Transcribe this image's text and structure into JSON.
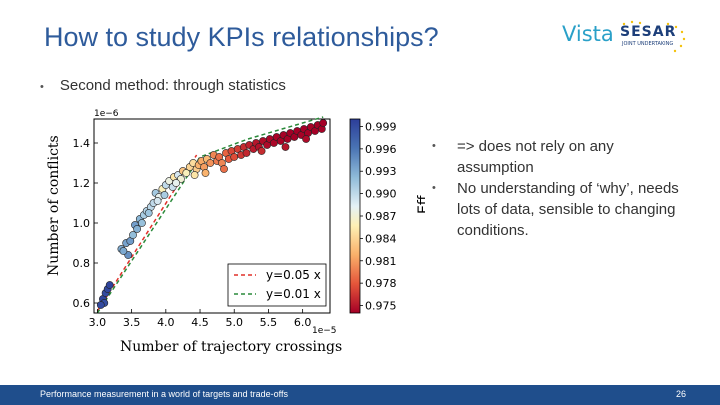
{
  "slide": {
    "title": "How to study KPIs relationships?",
    "bullet_main": "Second method: through statistics",
    "right_bullets": [
      "=> does not rely on any assumption",
      "No understanding of ‘why’, needs lots of data, sensible to changing conditions."
    ],
    "footer_text": "Performance measurement in a world of targets and trade-offs",
    "page_number": "26"
  },
  "logo": {
    "vista": "Vista",
    "sesar": "SESAR",
    "sesar_sub": "JOINT UNDERTAKING"
  },
  "colors": {
    "title": "#2e5b9b",
    "footer": "#1f4e8c",
    "line_red": "#e0302a",
    "line_green": "#2a8a3a"
  },
  "chart_data": {
    "type": "scatter",
    "xlabel": "Number of trajectory crossings",
    "ylabel": "Number of conflicts",
    "x_offset_label": "1e−5",
    "y_offset_label": "1e−6",
    "xlim": [
      2.95,
      6.4
    ],
    "ylim": [
      0.55,
      1.52
    ],
    "xticks": [
      "3.0",
      "3.5",
      "4.0",
      "4.5",
      "5.0",
      "5.5",
      "6.0"
    ],
    "yticks": [
      "0.6",
      "0.8",
      "1.0",
      "1.2",
      "1.4"
    ],
    "colorbar": {
      "label": "Eff",
      "range": [
        0.974,
        1.0
      ],
      "ticks": [
        "0.999",
        "0.996",
        "0.993",
        "0.990",
        "0.987",
        "0.984",
        "0.981",
        "0.978",
        "0.975"
      ]
    },
    "legend": {
      "position": "lower-right",
      "entries": [
        "y=0.05 x",
        "y=0.01 x"
      ]
    },
    "lines": [
      {
        "name": "y=0.05 x",
        "color": "#e0302a",
        "points": [
          [
            3.0,
            0.56
          ],
          [
            4.45,
            1.34
          ]
        ]
      },
      {
        "name": "y=0.01 x",
        "color": "#2a8a3a",
        "points": [
          [
            3.0,
            0.55
          ],
          [
            4.5,
            1.33
          ],
          [
            5.2,
            1.42
          ],
          [
            6.3,
            1.53
          ]
        ]
      }
    ],
    "points": [
      [
        3.08,
        0.62,
        0.9995
      ],
      [
        3.12,
        0.65,
        0.999
      ],
      [
        3.15,
        0.67,
        0.9993
      ],
      [
        3.1,
        0.6,
        0.9988
      ],
      [
        3.18,
        0.69,
        0.9996
      ],
      [
        3.05,
        0.59,
        0.9991
      ],
      [
        3.35,
        0.87,
        0.993
      ],
      [
        3.42,
        0.9,
        0.9935
      ],
      [
        3.48,
        0.91,
        0.994
      ],
      [
        3.52,
        0.94,
        0.992
      ],
      [
        3.45,
        0.84,
        0.9945
      ],
      [
        3.55,
        0.99,
        0.9938
      ],
      [
        3.62,
        1.02,
        0.9925
      ],
      [
        3.68,
        1.04,
        0.991
      ],
      [
        3.72,
        1.06,
        0.9905
      ],
      [
        3.78,
        1.08,
        0.9902
      ],
      [
        3.82,
        1.1,
        0.99
      ],
      [
        3.65,
        1.0,
        0.9918
      ],
      [
        3.85,
        1.15,
        0.9912
      ],
      [
        3.9,
        1.13,
        0.988
      ],
      [
        3.95,
        1.17,
        0.986
      ],
      [
        4.0,
        1.19,
        0.99
      ],
      [
        4.05,
        1.21,
        0.9875
      ],
      [
        4.1,
        1.18,
        0.9895
      ],
      [
        4.12,
        1.23,
        0.985
      ],
      [
        4.18,
        1.24,
        0.989
      ],
      [
        4.22,
        1.22,
        0.987
      ],
      [
        4.25,
        1.26,
        0.983
      ],
      [
        4.3,
        1.25,
        0.986
      ],
      [
        3.98,
        1.14,
        0.991
      ],
      [
        4.35,
        1.28,
        0.984
      ],
      [
        4.4,
        1.3,
        0.9845
      ],
      [
        4.45,
        1.27,
        0.9835
      ],
      [
        4.48,
        1.29,
        0.982
      ],
      [
        4.52,
        1.31,
        0.9815
      ],
      [
        4.56,
        1.28,
        0.981
      ],
      [
        4.6,
        1.32,
        0.9825
      ],
      [
        4.65,
        1.3,
        0.9805
      ],
      [
        4.7,
        1.34,
        0.98
      ],
      [
        4.75,
        1.31,
        0.9795
      ],
      [
        4.78,
        1.33,
        0.979
      ],
      [
        4.82,
        1.3,
        0.98
      ],
      [
        4.88,
        1.35,
        0.9785
      ],
      [
        4.92,
        1.32,
        0.978
      ],
      [
        4.96,
        1.36,
        0.9772
      ],
      [
        5.0,
        1.33,
        0.9775
      ],
      [
        5.05,
        1.37,
        0.9768
      ],
      [
        5.1,
        1.34,
        0.9765
      ],
      [
        5.14,
        1.38,
        0.976
      ],
      [
        5.18,
        1.35,
        0.9758
      ],
      [
        5.22,
        1.39,
        0.9755
      ],
      [
        5.28,
        1.37,
        0.9752
      ],
      [
        5.32,
        1.4,
        0.975
      ],
      [
        5.36,
        1.38,
        0.9748
      ],
      [
        5.42,
        1.41,
        0.9746
      ],
      [
        5.48,
        1.39,
        0.9745
      ],
      [
        5.52,
        1.42,
        0.9744
      ],
      [
        5.58,
        1.4,
        0.9743
      ],
      [
        5.62,
        1.43,
        0.9742
      ],
      [
        5.68,
        1.41,
        0.9742
      ],
      [
        5.72,
        1.44,
        0.9741
      ],
      [
        5.78,
        1.42,
        0.9741
      ],
      [
        5.82,
        1.45,
        0.974
      ],
      [
        5.88,
        1.43,
        0.974
      ],
      [
        5.92,
        1.46,
        0.974
      ],
      [
        5.98,
        1.44,
        0.9741
      ],
      [
        6.02,
        1.47,
        0.974
      ],
      [
        6.08,
        1.45,
        0.974
      ],
      [
        6.12,
        1.48,
        0.9741
      ],
      [
        6.18,
        1.46,
        0.974
      ],
      [
        6.22,
        1.49,
        0.974
      ],
      [
        6.28,
        1.47,
        0.9741
      ],
      [
        6.3,
        1.5,
        0.974
      ],
      [
        6.05,
        1.42,
        0.9745
      ],
      [
        5.75,
        1.38,
        0.975
      ],
      [
        5.4,
        1.36,
        0.976
      ],
      [
        4.85,
        1.27,
        0.979
      ],
      [
        4.58,
        1.25,
        0.982
      ],
      [
        4.42,
        1.24,
        0.985
      ],
      [
        4.15,
        1.2,
        0.988
      ],
      [
        3.88,
        1.11,
        0.989
      ],
      [
        3.75,
        1.05,
        0.9915
      ],
      [
        3.58,
        0.97,
        0.9928
      ],
      [
        3.38,
        0.86,
        0.9932
      ]
    ]
  }
}
